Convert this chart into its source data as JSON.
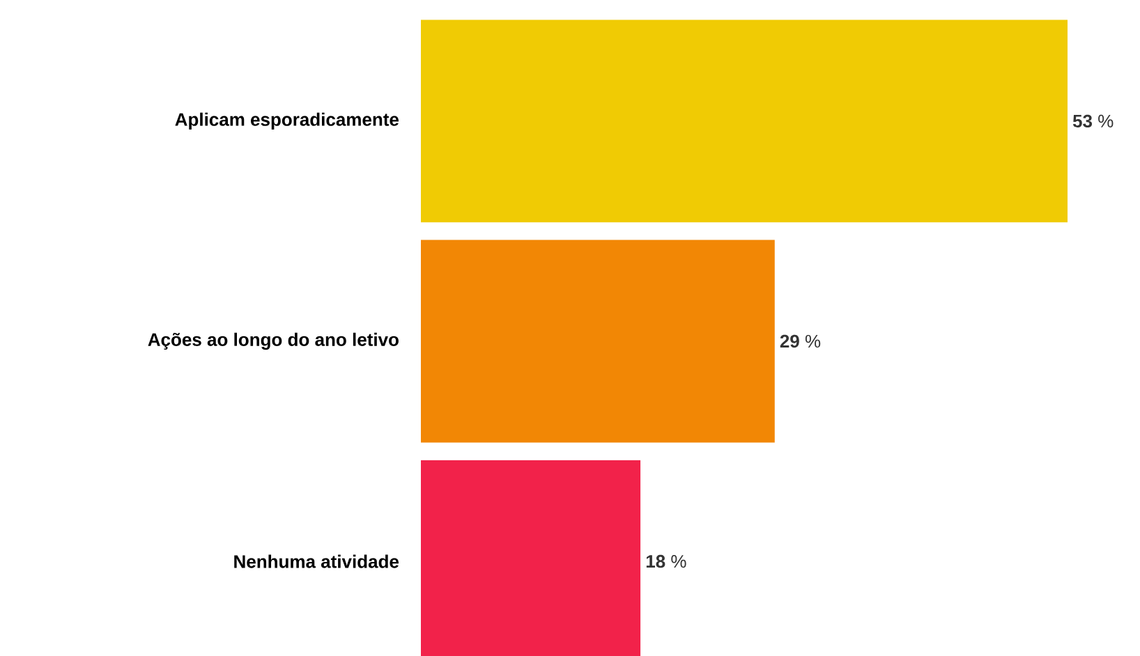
{
  "chart_data": {
    "type": "bar",
    "orientation": "horizontal",
    "categories": [
      "Aplicam esporadicamente",
      "Ações ao longo do ano letivo",
      "Nenhuma atividade"
    ],
    "values": [
      53,
      29,
      18
    ],
    "colors": [
      "#f0cb04",
      "#f28705",
      "#f2224a"
    ],
    "value_labels": [
      "**53** %",
      "**29** %",
      "**18** %"
    ]
  }
}
